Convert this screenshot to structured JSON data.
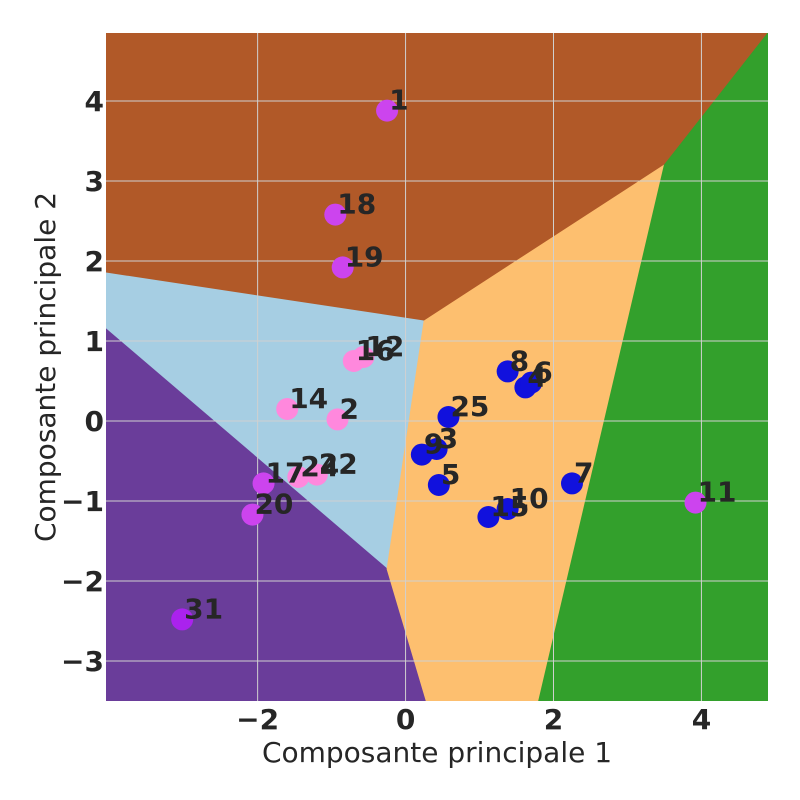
{
  "chart_data": {
    "type": "scatter",
    "subtype": "decision-regions",
    "title": "",
    "xlabel": "Composante principale 1",
    "ylabel": "Composante principale 2",
    "xlim": [
      -4.05,
      4.9
    ],
    "ylim": [
      -3.5,
      4.85
    ],
    "xticks": [
      -2,
      0,
      2,
      4
    ],
    "yticks": [
      -3,
      -2,
      -1,
      0,
      1,
      2,
      3,
      4
    ],
    "tick_labels": {
      "x": [
        "−2",
        "0",
        "2",
        "4"
      ],
      "y": [
        "−3",
        "−2",
        "−1",
        "0",
        "1",
        "2",
        "3",
        "4"
      ]
    },
    "grid": true,
    "regions": [
      {
        "name": "region-brown",
        "color": "#b15928",
        "polygon": [
          [
            -4.05,
            4.85
          ],
          [
            4.9,
            4.85
          ],
          [
            3.5,
            3.2
          ],
          [
            0.25,
            1.25
          ],
          [
            -4.05,
            1.85
          ]
        ]
      },
      {
        "name": "region-light-blue",
        "color": "#a6cee3",
        "polygon": [
          [
            -4.05,
            1.85
          ],
          [
            0.25,
            1.25
          ],
          [
            -0.25,
            -1.85
          ],
          [
            -4.05,
            1.15
          ]
        ]
      },
      {
        "name": "region-purple",
        "color": "#6a3d9a",
        "polygon": [
          [
            -4.05,
            1.15
          ],
          [
            -0.25,
            -1.85
          ],
          [
            0.28,
            -3.5
          ],
          [
            -4.05,
            -3.5
          ]
        ]
      },
      {
        "name": "region-orange",
        "color": "#fdbf6f",
        "polygon": [
          [
            0.25,
            1.25
          ],
          [
            3.5,
            3.2
          ],
          [
            1.8,
            -3.5
          ],
          [
            0.28,
            -3.5
          ],
          [
            -0.25,
            -1.85
          ]
        ]
      },
      {
        "name": "region-green",
        "color": "#33a02c",
        "polygon": [
          [
            4.9,
            4.85
          ],
          [
            4.9,
            -3.5
          ],
          [
            1.8,
            -3.5
          ],
          [
            3.5,
            3.2
          ]
        ]
      }
    ],
    "points": [
      {
        "label": "1",
        "x": -0.25,
        "y": 3.88,
        "color": "#cc44ee"
      },
      {
        "label": "18",
        "x": -0.95,
        "y": 2.58,
        "color": "#cc44ee"
      },
      {
        "label": "19",
        "x": -0.85,
        "y": 1.92,
        "color": "#cc44ee"
      },
      {
        "label": "16",
        "x": -0.7,
        "y": 0.75,
        "color": "#ff88dd"
      },
      {
        "label": "12",
        "x": -0.57,
        "y": 0.8,
        "color": "#ff88dd"
      },
      {
        "label": "14",
        "x": -1.6,
        "y": 0.15,
        "color": "#ff88dd"
      },
      {
        "label": "2",
        "x": -0.92,
        "y": 0.02,
        "color": "#ff88dd"
      },
      {
        "label": "17",
        "x": -1.92,
        "y": -0.78,
        "color": "#cc44ee"
      },
      {
        "label": "24",
        "x": -1.45,
        "y": -0.7,
        "color": "#ff88dd"
      },
      {
        "label": "22",
        "x": -1.2,
        "y": -0.67,
        "color": "#ff88dd"
      },
      {
        "label": "20",
        "x": -2.07,
        "y": -1.17,
        "color": "#cc44ee"
      },
      {
        "label": "31",
        "x": -3.02,
        "y": -2.48,
        "color": "#aa22ee"
      },
      {
        "label": "8",
        "x": 1.38,
        "y": 0.62,
        "color": "#1111dd"
      },
      {
        "label": "4",
        "x": 1.62,
        "y": 0.42,
        "color": "#1111dd"
      },
      {
        "label": "6",
        "x": 1.7,
        "y": 0.48,
        "color": "#1111dd"
      },
      {
        "label": "25",
        "x": 0.58,
        "y": 0.05,
        "color": "#1111dd"
      },
      {
        "label": "9",
        "x": 0.22,
        "y": -0.42,
        "color": "#1111dd"
      },
      {
        "label": "3",
        "x": 0.42,
        "y": -0.35,
        "color": "#1111dd"
      },
      {
        "label": "5",
        "x": 0.45,
        "y": -0.8,
        "color": "#1111dd"
      },
      {
        "label": "7",
        "x": 2.25,
        "y": -0.78,
        "color": "#1111dd"
      },
      {
        "label": "15",
        "x": 1.12,
        "y": -1.2,
        "color": "#1111dd"
      },
      {
        "label": "10",
        "x": 1.38,
        "y": -1.1,
        "color": "#1111dd"
      },
      {
        "label": "11",
        "x": 3.92,
        "y": -1.02,
        "color": "#cc44ee"
      }
    ]
  }
}
